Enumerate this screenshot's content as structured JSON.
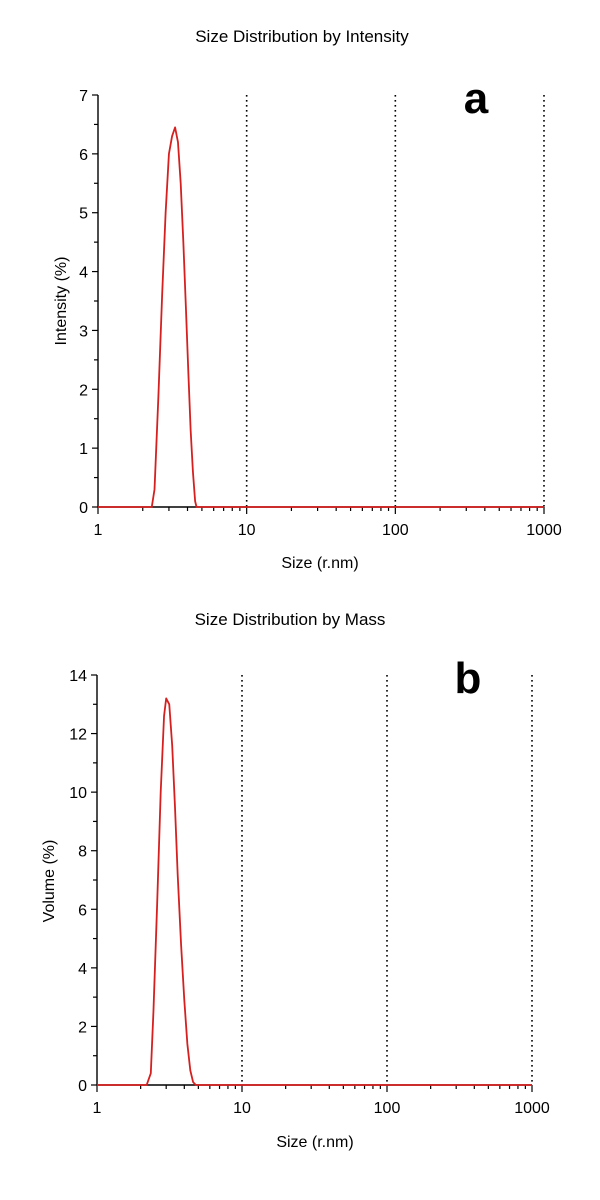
{
  "chart_data": [
    {
      "type": "line",
      "panel_label": "a",
      "title": "Size Distribution by Intensity",
      "xlabel": "Size (r.nm)",
      "ylabel": "Intensity (%)",
      "xscale": "log",
      "xlim": [
        1,
        1000
      ],
      "ylim": [
        0,
        7
      ],
      "xticks": [
        1,
        10,
        100,
        1000
      ],
      "yticks": [
        0,
        1,
        2,
        3,
        4,
        5,
        6,
        7
      ],
      "vertical_gridlines_at": [
        10,
        100,
        1000
      ],
      "line_color": "#d62020",
      "series": [
        {
          "x": [
            1,
            2.3,
            2.4,
            2.55,
            2.7,
            2.85,
            3.0,
            3.15,
            3.3,
            3.45,
            3.6,
            3.75,
            3.9,
            4.05,
            4.2,
            4.35,
            4.5,
            4.6,
            10,
            100,
            1000
          ],
          "y": [
            0,
            0,
            0.3,
            1.9,
            3.6,
            5.0,
            6.0,
            6.3,
            6.45,
            6.2,
            5.5,
            4.5,
            3.4,
            2.3,
            1.3,
            0.6,
            0.1,
            0,
            0,
            0,
            0
          ]
        }
      ]
    },
    {
      "type": "line",
      "panel_label": "b",
      "title": "Size Distribution by Mass",
      "xlabel": "Size (r.nm)",
      "ylabel": "Volume (%)",
      "xscale": "log",
      "xlim": [
        1,
        1000
      ],
      "ylim": [
        0,
        14
      ],
      "xticks": [
        1,
        10,
        100,
        1000
      ],
      "yticks": [
        0,
        2,
        4,
        6,
        8,
        10,
        12,
        14
      ],
      "vertical_gridlines_at": [
        10,
        100,
        1000
      ],
      "line_color": "#d62020",
      "series": [
        {
          "x": [
            1,
            2.2,
            2.35,
            2.45,
            2.6,
            2.75,
            2.9,
            3.0,
            3.15,
            3.3,
            3.45,
            3.6,
            3.8,
            4.0,
            4.2,
            4.4,
            4.6,
            4.8,
            10,
            100,
            1000
          ],
          "y": [
            0,
            0,
            0.4,
            2.5,
            6.2,
            10.0,
            12.6,
            13.2,
            13.0,
            11.6,
            9.5,
            7.2,
            4.8,
            2.9,
            1.4,
            0.5,
            0.1,
            0,
            0,
            0,
            0
          ]
        }
      ]
    }
  ]
}
